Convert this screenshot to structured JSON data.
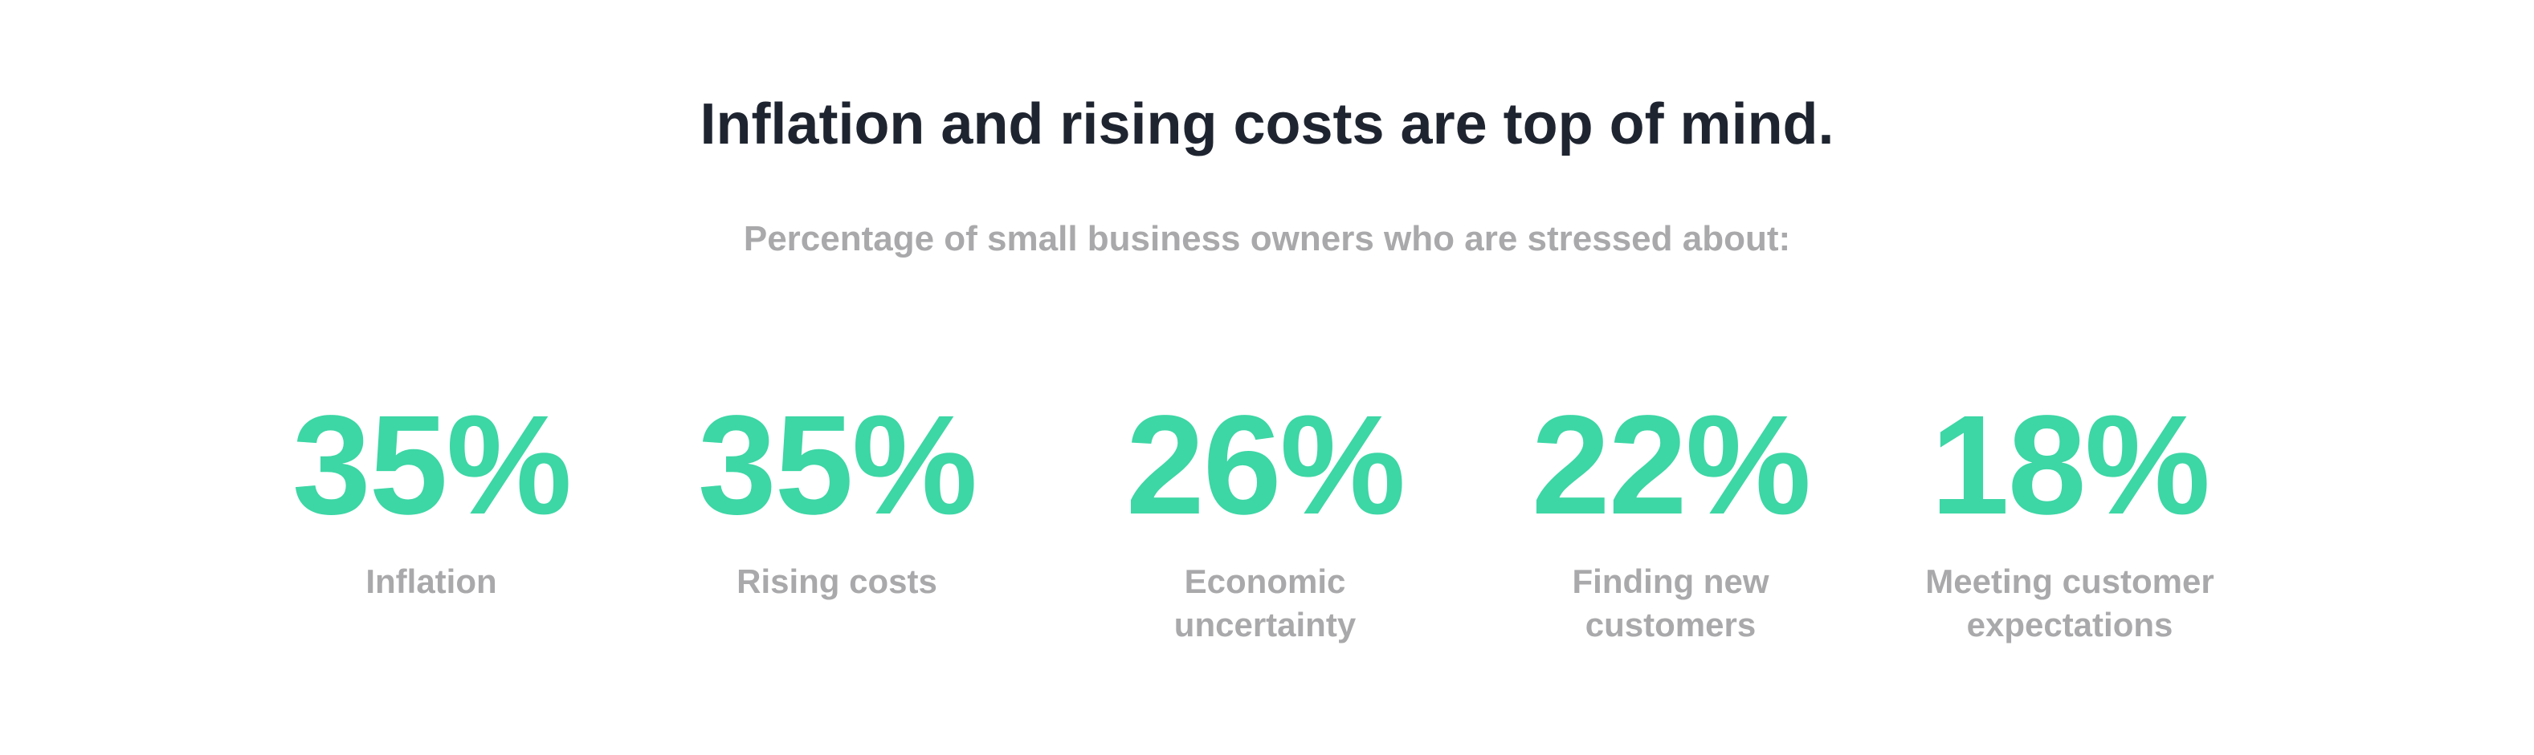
{
  "title": "Inflation and rising costs are top of mind.",
  "subtitle": "Percentage of small business owners who are stressed about:",
  "stats": [
    {
      "value": "35%",
      "label": "Inflation"
    },
    {
      "value": "35%",
      "label": "Rising costs"
    },
    {
      "value": "26%",
      "label": "Economic uncertainty"
    },
    {
      "value": "22%",
      "label": "Finding new customers"
    },
    {
      "value": "18%",
      "label": "Meeting customer expectations"
    }
  ]
}
